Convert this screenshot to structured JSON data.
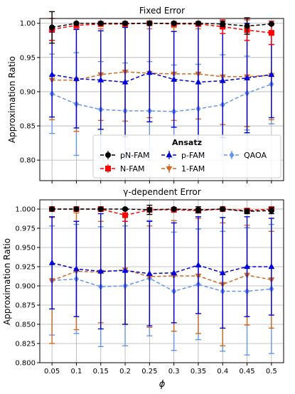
{
  "colors": {
    "pN-FAM": "#000000",
    "N-FAM": "#ff0000",
    "p-FAM": "#0000dd",
    "1-FAM": "#d2691e",
    "QAOA": "#6495ed",
    "grid": "#b0b0b0"
  },
  "legend": {
    "title": "Ansatz",
    "entries": [
      "pN-FAM",
      "N-FAM",
      "p-FAM",
      "1-FAM",
      "QAOA"
    ],
    "placement": "lower-right of top panel"
  },
  "shared_x": {
    "xlabel": "ϕ",
    "ticks": [
      "0.05",
      "0.1",
      "0.15",
      "0.2",
      "0.25",
      "0.3",
      "0.35",
      "0.4",
      "0.45",
      "0.5"
    ]
  },
  "chart_data": [
    {
      "type": "line",
      "title": "Fixed Error",
      "ylabel": "Approximation Ratio",
      "ylim": [
        0.77,
        1.007
      ],
      "yticks": [
        "0.80",
        "0.85",
        "0.90",
        "0.95",
        "1.00"
      ],
      "grid": true,
      "x": [
        0.05,
        0.1,
        0.15,
        0.2,
        0.25,
        0.3,
        0.35,
        0.4,
        0.45,
        0.5
      ],
      "series": [
        {
          "name": "pN-FAM",
          "marker": "circle",
          "values": [
            0.994,
            1.0,
            1.0,
            1.0,
            1.0,
            1.0,
            1.0,
            0.999,
            0.996,
            0.999
          ],
          "err": [
            0.023,
            0.001,
            0.001,
            0.001,
            0.001,
            0.001,
            0.001,
            0.004,
            0.012,
            0.001
          ]
        },
        {
          "name": "N-FAM",
          "marker": "square",
          "values": [
            0.991,
            0.997,
            0.999,
            0.999,
            1.0,
            0.999,
            0.999,
            0.995,
            0.99,
            0.986
          ],
          "err": [
            0.016,
            0.003,
            0.001,
            0.001,
            0.001,
            0.001,
            0.001,
            0.01,
            0.015,
            0.017
          ]
        },
        {
          "name": "p-FAM",
          "marker": "triangle-up",
          "values": [
            0.925,
            0.919,
            0.917,
            0.914,
            0.928,
            0.918,
            0.914,
            0.916,
            0.92,
            0.925
          ],
          "err": [
            0.062,
            0.072,
            0.072,
            0.08,
            0.072,
            0.07,
            0.085,
            0.083,
            0.08,
            0.063
          ]
        },
        {
          "name": "1-FAM",
          "marker": "triangle-down",
          "values": [
            0.917,
            0.917,
            0.925,
            0.929,
            0.927,
            0.926,
            0.926,
            0.922,
            0.922,
            0.924
          ],
          "err": [
            0.058,
            0.075,
            0.067,
            0.072,
            0.065,
            0.068,
            0.066,
            0.07,
            0.073,
            0.065
          ]
        },
        {
          "name": "QAOA",
          "marker": "diamond",
          "values": [
            0.897,
            0.882,
            0.874,
            0.872,
            0.872,
            0.871,
            0.875,
            0.881,
            0.898,
            0.911
          ],
          "err": [
            0.058,
            0.075,
            0.07,
            0.07,
            0.072,
            0.068,
            0.065,
            0.073,
            0.054,
            0.058
          ]
        }
      ]
    },
    {
      "type": "line",
      "title": "γ-dependent Error",
      "ylabel": "Approximation Ratio",
      "ylim": [
        0.8,
        1.012
      ],
      "yticks": [
        "0.800",
        "0.825",
        "0.850",
        "0.875",
        "0.900",
        "0.925",
        "0.950",
        "0.975",
        "1.000"
      ],
      "grid": true,
      "x": [
        0.05,
        0.1,
        0.15,
        0.2,
        0.25,
        0.3,
        0.35,
        0.4,
        0.45,
        0.5
      ],
      "series": [
        {
          "name": "pN-FAM",
          "marker": "circle",
          "values": [
            1.0,
            1.0,
            1.0,
            1.0,
            0.999,
            1.0,
            0.999,
            1.0,
            0.997,
            0.998
          ],
          "err": [
            0.001,
            0.001,
            0.001,
            0.001,
            0.006,
            0.001,
            0.004,
            0.001,
            0.003,
            0.004
          ]
        },
        {
          "name": "N-FAM",
          "marker": "square",
          "values": [
            1.0,
            1.0,
            1.0,
            0.992,
            0.999,
            0.999,
            0.998,
            1.0,
            0.998,
            1.0
          ],
          "err": [
            0.001,
            0.001,
            0.002,
            0.008,
            0.001,
            0.001,
            0.002,
            0.001,
            0.002,
            0.001
          ]
        },
        {
          "name": "p-FAM",
          "marker": "triangle-up",
          "values": [
            0.93,
            0.922,
            0.919,
            0.92,
            0.916,
            0.917,
            0.927,
            0.917,
            0.925,
            0.925
          ],
          "err": [
            0.06,
            0.062,
            0.075,
            0.07,
            0.068,
            0.065,
            0.063,
            0.072,
            0.065,
            0.063
          ]
        },
        {
          "name": "1-FAM",
          "marker": "triangle-down",
          "values": [
            0.907,
            0.919,
            0.918,
            0.921,
            0.912,
            0.913,
            0.913,
            0.902,
            0.914,
            0.908
          ],
          "err": [
            0.082,
            0.076,
            0.066,
            0.071,
            0.066,
            0.072,
            0.075,
            0.08,
            0.065,
            0.063
          ]
        },
        {
          "name": "QAOA",
          "marker": "diamond",
          "values": [
            0.907,
            0.909,
            0.899,
            0.9,
            0.91,
            0.893,
            0.902,
            0.893,
            0.893,
            0.896
          ],
          "err": [
            0.071,
            0.071,
            0.078,
            0.078,
            0.075,
            0.077,
            0.072,
            0.078,
            0.083,
            0.084
          ]
        }
      ]
    }
  ]
}
